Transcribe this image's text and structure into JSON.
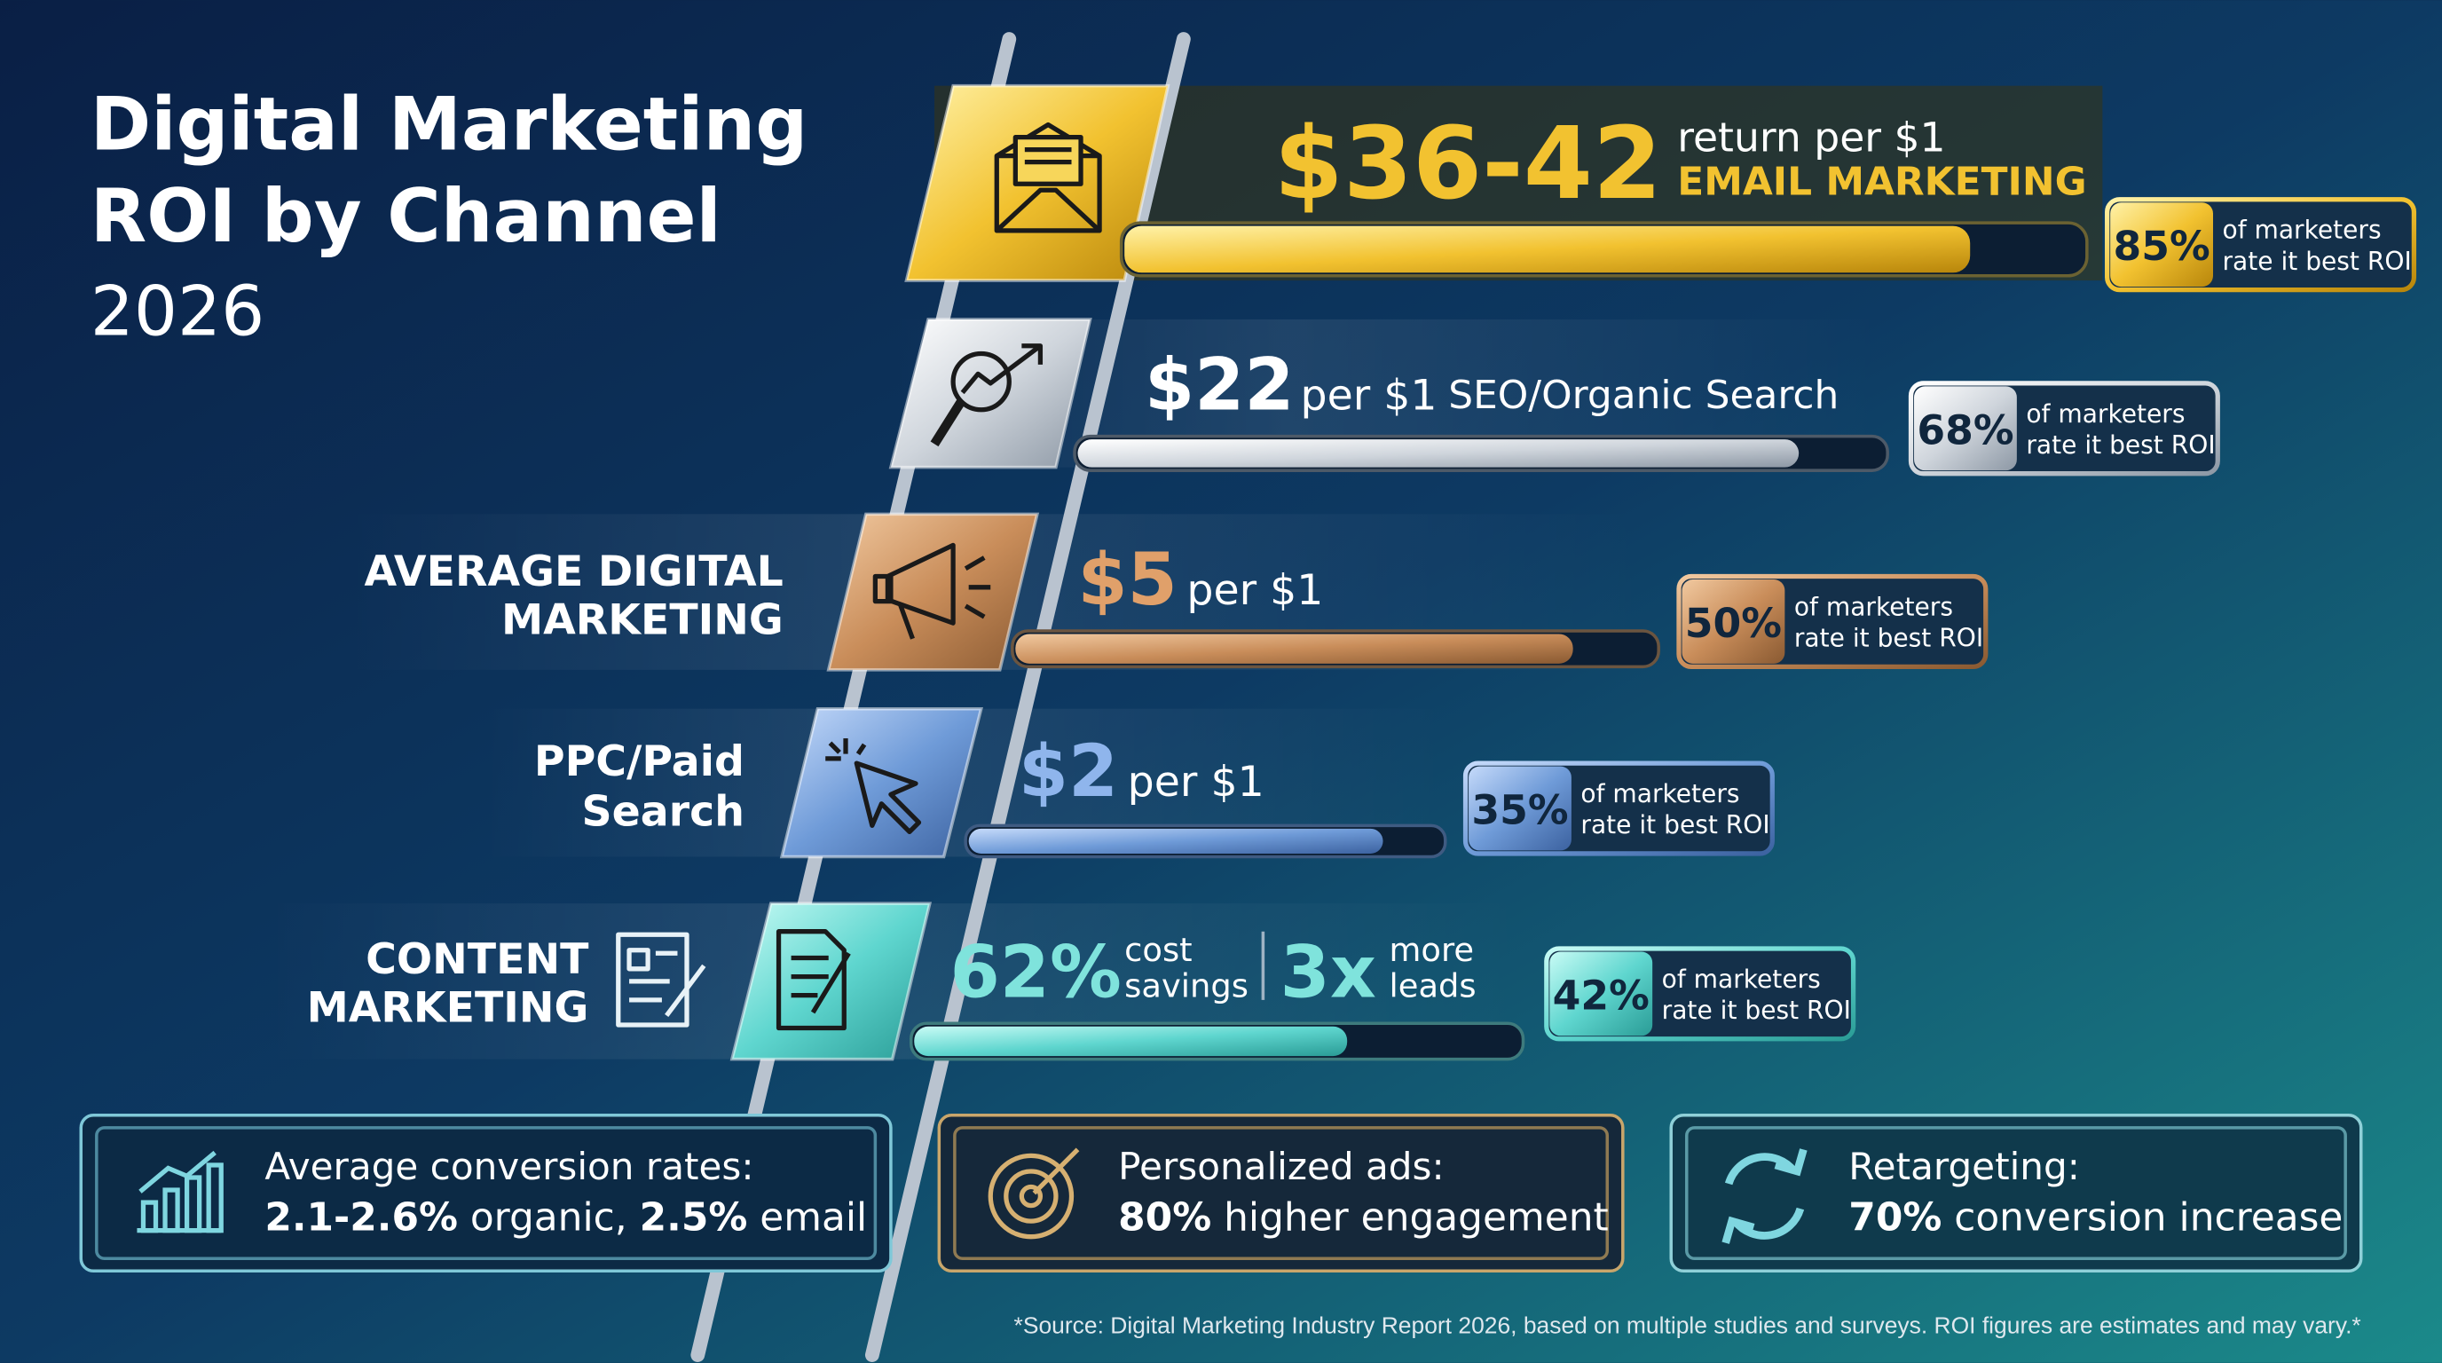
{
  "header": {
    "title_lines": [
      "Digital Marketing",
      "ROI by Channel"
    ],
    "year": "2026"
  },
  "channels": [
    {
      "roi": "$36-42",
      "roi_note": "return per $1",
      "name": "EMAIL MARKETING",
      "share": "85%",
      "share_note": [
        "of marketers",
        "rate it best ROI"
      ]
    },
    {
      "roi": "$22",
      "roi_note": "per $1",
      "name": "SEO/Organic Search",
      "share": "68%",
      "share_note": [
        "of marketers",
        "rate it best ROI"
      ]
    },
    {
      "roi": "$5",
      "roi_note": "per $1",
      "name_lines": [
        "AVERAGE DIGITAL",
        "MARKETING"
      ],
      "share": "50%",
      "share_note": [
        "of marketers",
        "rate it best ROI"
      ]
    },
    {
      "roi": "$2",
      "roi_note": "per $1",
      "name_lines": [
        "PPC/Paid",
        "Search"
      ],
      "share": "35%",
      "share_note": [
        "of marketers",
        "rate it best ROI"
      ]
    },
    {
      "name_lines": [
        "CONTENT",
        "MARKETING"
      ],
      "stat1": "62%",
      "stat1_note": [
        "cost",
        "savings"
      ],
      "stat2": "3x",
      "stat2_note": [
        "more",
        "leads"
      ],
      "share": "42%",
      "share_note": [
        "of marketers",
        "rate it best ROI"
      ]
    }
  ],
  "highlights": [
    {
      "heading": "Average conversion rates:",
      "parts": [
        "2.1-2.6%",
        " organic, ",
        "2.5%",
        " email"
      ]
    },
    {
      "heading": "Personalized ads:",
      "parts": [
        "80%",
        " higher engagement"
      ]
    },
    {
      "heading": "Retargeting:",
      "parts": [
        "70%",
        " conversion increase"
      ]
    }
  ],
  "footnote": "*Source: Digital Marketing Industry Report 2026, based on multiple studies and surveys. ROI figures are estimates and may vary.*"
}
